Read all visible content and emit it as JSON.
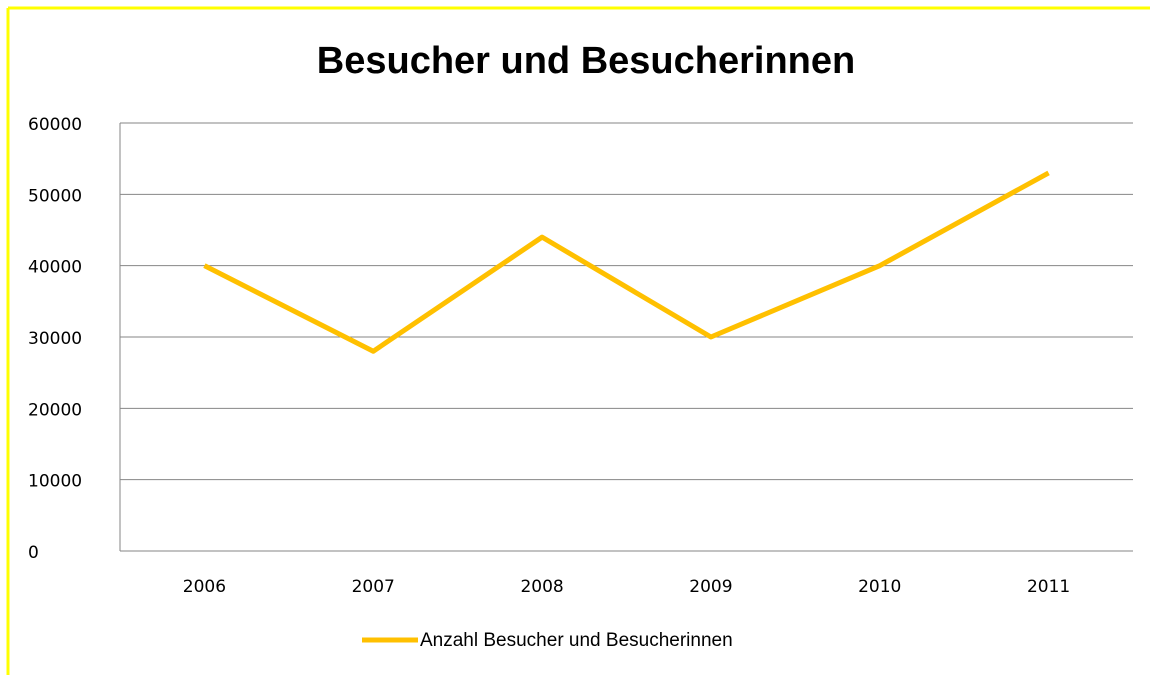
{
  "chart_data": {
    "type": "line",
    "title": "Besucher und Besucherinnen",
    "categories": [
      "2006",
      "2007",
      "2008",
      "2009",
      "2010",
      "2011"
    ],
    "series": [
      {
        "name": "Anzahl Besucher und Besucherinnen",
        "color": "#ffc000",
        "values": [
          40000,
          28000,
          44000,
          30000,
          40000,
          53000
        ]
      }
    ],
    "ylim": [
      0,
      60000
    ],
    "yticks": [
      0,
      10000,
      20000,
      30000,
      40000,
      50000,
      60000
    ],
    "grid": true,
    "legend": "bottom"
  }
}
